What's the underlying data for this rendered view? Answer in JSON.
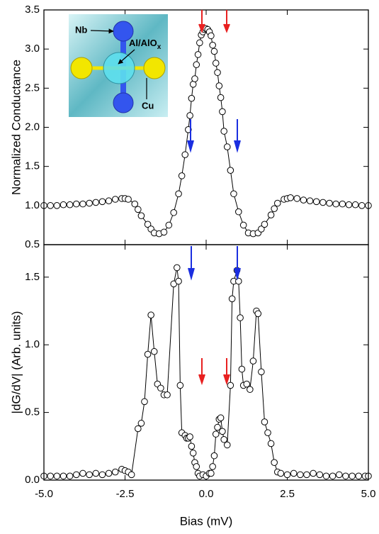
{
  "chart_data": [
    {
      "type": "line",
      "ylabel": "Normalized Conductance",
      "annotations": [
        "Nb",
        "Al/AlO",
        "x",
        "Cu"
      ],
      "x": [
        -5.0,
        -4.8,
        -4.6,
        -4.4,
        -4.2,
        -4.0,
        -3.8,
        -3.6,
        -3.4,
        -3.2,
        -3.0,
        -2.8,
        -2.6,
        -2.5,
        -2.4,
        -2.2,
        -2.1,
        -2.0,
        -1.8,
        -1.7,
        -1.6,
        -1.45,
        -1.3,
        -1.15,
        -1.0,
        -0.85,
        -0.75,
        -0.65,
        -0.55,
        -0.5,
        -0.45,
        -0.4,
        -0.35,
        -0.3,
        -0.25,
        -0.2,
        -0.15,
        -0.1,
        -0.05,
        0,
        0.05,
        0.1,
        0.15,
        0.2,
        0.25,
        0.3,
        0.35,
        0.4,
        0.45,
        0.5,
        0.55,
        0.65,
        0.75,
        0.85,
        1.0,
        1.15,
        1.3,
        1.45,
        1.6,
        1.7,
        1.8,
        2.0,
        2.1,
        2.2,
        2.4,
        2.5,
        2.6,
        2.8,
        3.0,
        3.2,
        3.4,
        3.6,
        3.8,
        4.0,
        4.2,
        4.4,
        4.6,
        4.8,
        5.0
      ],
      "series": [
        {
          "color": "#000000",
          "values": [
            1.0,
            1.0,
            1.0,
            1.01,
            1.01,
            1.02,
            1.02,
            1.03,
            1.04,
            1.05,
            1.06,
            1.08,
            1.09,
            1.09,
            1.08,
            1.02,
            0.95,
            0.87,
            0.76,
            0.7,
            0.65,
            0.64,
            0.66,
            0.75,
            0.91,
            1.15,
            1.38,
            1.65,
            1.97,
            2.15,
            2.37,
            2.55,
            2.62,
            2.8,
            2.93,
            3.08,
            3.18,
            3.22,
            3.25,
            3.26,
            3.25,
            3.22,
            3.17,
            3.05,
            2.97,
            2.82,
            2.7,
            2.53,
            2.38,
            2.2,
            1.95,
            1.75,
            1.45,
            1.15,
            0.92,
            0.75,
            0.65,
            0.64,
            0.65,
            0.7,
            0.76,
            0.88,
            0.96,
            1.03,
            1.08,
            1.09,
            1.1,
            1.09,
            1.07,
            1.06,
            1.05,
            1.04,
            1.03,
            1.02,
            1.02,
            1.01,
            1.01,
            1.0,
            1.0
          ]
        }
      ],
      "xlim": [
        -5,
        5
      ],
      "ylim": [
        0.5,
        3.5
      ],
      "yticks": [
        {
          "value": 0.5,
          "label": "0.5"
        },
        {
          "value": 1.0,
          "label": "1.0"
        },
        {
          "value": 1.5,
          "label": "1.5"
        },
        {
          "value": 2.0,
          "label": "2.0"
        },
        {
          "value": 2.5,
          "label": "2.5"
        },
        {
          "value": 3.0,
          "label": "3.0"
        },
        {
          "value": 3.5,
          "label": "3.5"
        }
      ]
    },
    {
      "type": "line",
      "ylabel": "|dG/dV| (Arb. units)",
      "xlabel": "Bias (mV)",
      "x": [
        -5.0,
        -4.8,
        -4.6,
        -4.4,
        -4.2,
        -4.0,
        -3.8,
        -3.6,
        -3.4,
        -3.2,
        -3.0,
        -2.8,
        -2.6,
        -2.5,
        -2.4,
        -2.3,
        -2.1,
        -2.0,
        -1.9,
        -1.8,
        -1.7,
        -1.6,
        -1.5,
        -1.4,
        -1.3,
        -1.2,
        -1.0,
        -0.9,
        -0.85,
        -0.8,
        -0.75,
        -0.65,
        -0.6,
        -0.55,
        -0.5,
        -0.45,
        -0.4,
        -0.35,
        -0.3,
        -0.25,
        -0.2,
        -0.1,
        0,
        0.1,
        0.15,
        0.2,
        0.25,
        0.3,
        0.35,
        0.4,
        0.45,
        0.5,
        0.55,
        0.65,
        0.75,
        0.8,
        0.85,
        0.95,
        1.0,
        1.05,
        1.1,
        1.15,
        1.25,
        1.35,
        1.45,
        1.55,
        1.6,
        1.7,
        1.8,
        1.9,
        2.0,
        2.1,
        2.2,
        2.3,
        2.5,
        2.7,
        2.9,
        3.1,
        3.3,
        3.5,
        3.7,
        3.9,
        4.1,
        4.3,
        4.5,
        4.7,
        4.9,
        5.0
      ],
      "series": [
        {
          "color": "#000000",
          "values": [
            0.03,
            0.03,
            0.03,
            0.03,
            0.03,
            0.04,
            0.05,
            0.04,
            0.05,
            0.04,
            0.05,
            0.06,
            0.08,
            0.07,
            0.06,
            0.04,
            0.38,
            0.42,
            0.58,
            0.93,
            1.22,
            0.95,
            0.71,
            0.68,
            0.63,
            0.63,
            1.45,
            1.57,
            1.47,
            0.7,
            0.35,
            0.33,
            0.31,
            0.31,
            0.32,
            0.25,
            0.2,
            0.13,
            0.1,
            0.05,
            0.03,
            0.04,
            0.03,
            0.05,
            0.05,
            0.1,
            0.18,
            0.34,
            0.39,
            0.45,
            0.46,
            0.36,
            0.3,
            0.26,
            0.7,
            1.34,
            1.47,
            1.55,
            1.47,
            1.2,
            0.82,
            0.7,
            0.71,
            0.67,
            0.88,
            1.25,
            1.23,
            0.8,
            0.43,
            0.35,
            0.27,
            0.13,
            0.06,
            0.05,
            0.04,
            0.05,
            0.04,
            0.04,
            0.05,
            0.04,
            0.03,
            0.03,
            0.04,
            0.03,
            0.03,
            0.03,
            0.03,
            0.03
          ]
        }
      ],
      "xlim": [
        -5,
        5
      ],
      "ylim": [
        0,
        1.74
      ],
      "xticks": [
        {
          "value": -5,
          "label": "-5.0"
        },
        {
          "value": -2.5,
          "label": "-2.5"
        },
        {
          "value": 0,
          "label": "0.0"
        },
        {
          "value": 2.5,
          "label": "2.5"
        },
        {
          "value": 5,
          "label": "5.0"
        }
      ],
      "yticks": [
        {
          "value": 0,
          "label": "0.0"
        },
        {
          "value": 0.5,
          "label": "0.5"
        },
        {
          "value": 1.0,
          "label": "1.0"
        },
        {
          "value": 1.5,
          "label": "1.5"
        }
      ]
    }
  ]
}
